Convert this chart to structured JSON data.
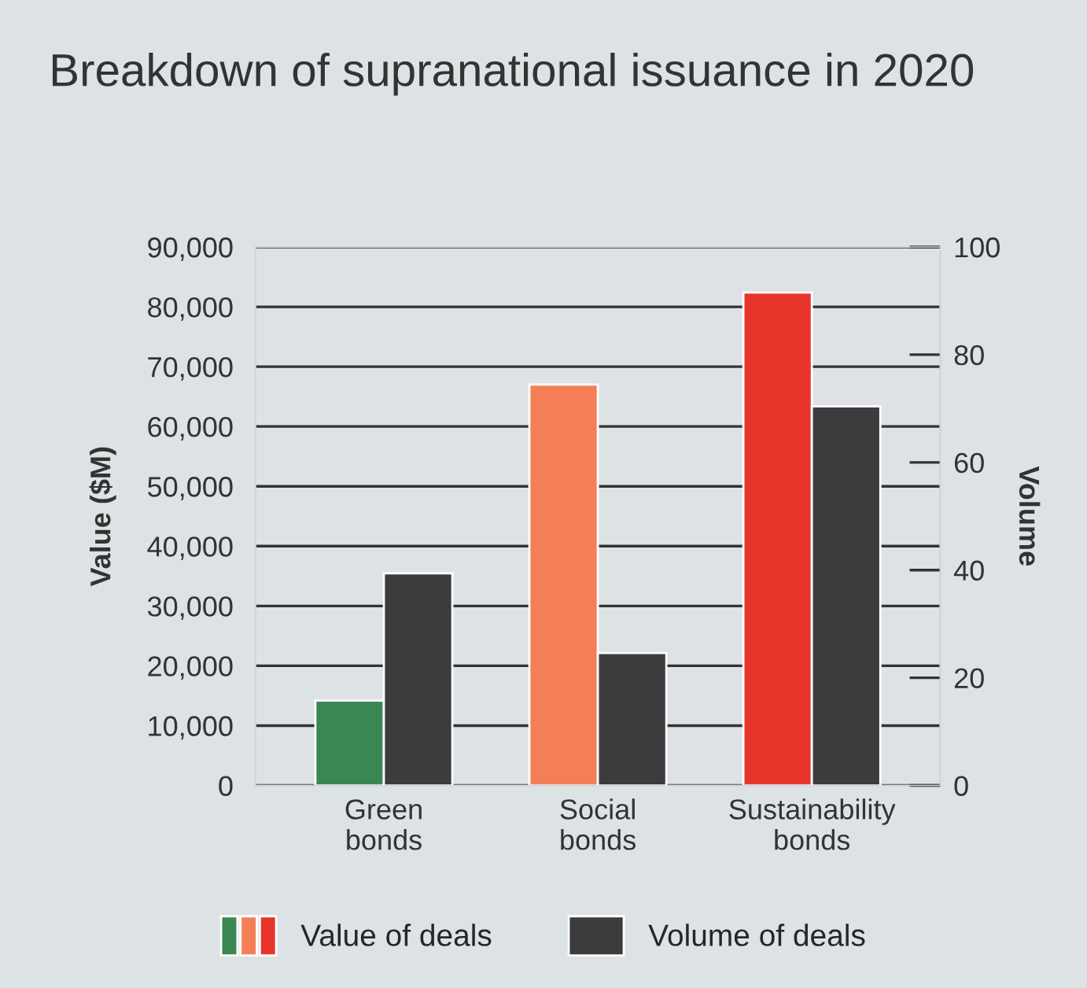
{
  "chart_data": {
    "type": "bar",
    "title": "Breakdown of supranational issuance in 2020",
    "ylabel": "Value ($M)",
    "y2label": "Volume",
    "categories": [
      "Green\nbonds",
      "Social\nbonds",
      "Sustainability\nbonds"
    ],
    "series": [
      {
        "name": "Value of deals",
        "colors": [
          "#3a8754",
          "#f47f56",
          "#e8352c"
        ],
        "values": [
          14200,
          67000,
          82400
        ]
      },
      {
        "name": "Volume of deals",
        "color": "#3c3c3e",
        "axis": "y2",
        "values": [
          39.4,
          24.6,
          70.4
        ]
      }
    ],
    "ylim": [
      0,
      90000
    ],
    "yticks": [
      {
        "value": 0,
        "label": "0"
      },
      {
        "value": 10000,
        "label": "10,000"
      },
      {
        "value": 20000,
        "label": "20,000"
      },
      {
        "value": 30000,
        "label": "30,000"
      },
      {
        "value": 40000,
        "label": "40,000"
      },
      {
        "value": 50000,
        "label": "50,000"
      },
      {
        "value": 60000,
        "label": "60,000"
      },
      {
        "value": 70000,
        "label": "70,000"
      },
      {
        "value": 80000,
        "label": "80,000"
      },
      {
        "value": 90000,
        "label": "90,000"
      }
    ],
    "y2lim": [
      0,
      100
    ],
    "y2ticks": [
      0,
      20,
      40,
      60,
      80,
      100
    ],
    "grid": "y",
    "legend": "bottom"
  }
}
